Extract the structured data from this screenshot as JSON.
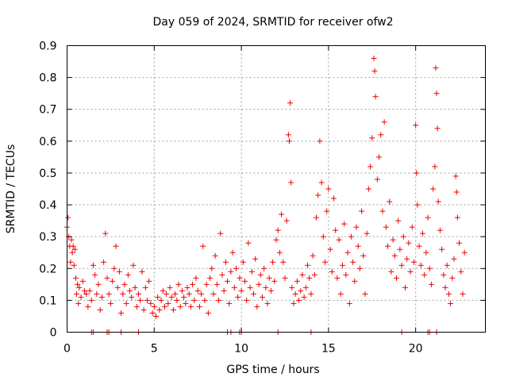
{
  "chart_data": {
    "type": "scatter",
    "title": "Day 059 of 2024, SRMTID for receiver ofw2",
    "xlabel": "GPS time / hours",
    "ylabel": "SRMTID / TECUs",
    "xlim": [
      0,
      24
    ],
    "ylim": [
      0,
      0.9
    ],
    "xticks": [
      0,
      5,
      10,
      15,
      20
    ],
    "yticks": [
      0,
      0.1,
      0.2,
      0.3,
      0.4,
      0.5,
      0.6,
      0.7,
      0.8,
      0.9
    ],
    "xtick_labels": [
      "0",
      "5",
      "10",
      "15",
      "20"
    ],
    "ytick_labels": [
      "0",
      "0.1",
      "0.2",
      "0.3",
      "0.4",
      "0.5",
      "0.6",
      "0.7",
      "0.8",
      "0.9"
    ],
    "grid": true,
    "marker": "plus",
    "color": "#ee0000",
    "series": [
      {
        "name": "SRMTID",
        "points": [
          [
            0.0,
            0.33
          ],
          [
            0.05,
            0.36
          ],
          [
            0.1,
            0.3
          ],
          [
            0.15,
            0.27
          ],
          [
            0.2,
            0.22
          ],
          [
            0.25,
            0.29
          ],
          [
            0.3,
            0.25
          ],
          [
            0.35,
            0.27
          ],
          [
            0.4,
            0.21
          ],
          [
            0.45,
            0.26
          ],
          [
            0.5,
            0.17
          ],
          [
            0.55,
            0.12
          ],
          [
            0.6,
            0.15
          ],
          [
            0.65,
            0.09
          ],
          [
            0.7,
            0.14
          ],
          [
            0.8,
            0.11
          ],
          [
            0.9,
            0.16
          ],
          [
            1.0,
            0.13
          ],
          [
            1.1,
            0.12
          ],
          [
            1.2,
            0.08
          ],
          [
            1.3,
            0.13
          ],
          [
            1.4,
            0.1
          ],
          [
            1.5,
            0.21
          ],
          [
            1.6,
            0.18
          ],
          [
            1.7,
            0.12
          ],
          [
            1.8,
            0.15
          ],
          [
            1.9,
            0.07
          ],
          [
            2.0,
            0.11
          ],
          [
            2.1,
            0.22
          ],
          [
            2.2,
            0.31
          ],
          [
            2.3,
            0.17
          ],
          [
            2.4,
            0.12
          ],
          [
            2.5,
            0.09
          ],
          [
            2.6,
            0.16
          ],
          [
            2.7,
            0.2
          ],
          [
            2.8,
            0.27
          ],
          [
            2.9,
            0.14
          ],
          [
            3.0,
            0.19
          ],
          [
            3.1,
            0.06
          ],
          [
            3.2,
            0.12
          ],
          [
            3.3,
            0.15
          ],
          [
            3.4,
            0.09
          ],
          [
            3.5,
            0.18
          ],
          [
            3.6,
            0.13
          ],
          [
            3.7,
            0.11
          ],
          [
            3.8,
            0.21
          ],
          [
            3.9,
            0.14
          ],
          [
            4.0,
            0.08
          ],
          [
            4.1,
            0.12
          ],
          [
            4.2,
            0.1
          ],
          [
            4.3,
            0.19
          ],
          [
            4.4,
            0.07
          ],
          [
            4.5,
            0.14
          ],
          [
            4.6,
            0.1
          ],
          [
            4.7,
            0.16
          ],
          [
            4.8,
            0.09
          ],
          [
            4.9,
            0.06
          ],
          [
            5.0,
            0.08
          ],
          [
            5.1,
            0.05
          ],
          [
            5.2,
            0.11
          ],
          [
            5.3,
            0.07
          ],
          [
            5.4,
            0.1
          ],
          [
            5.5,
            0.13
          ],
          [
            5.6,
            0.08
          ],
          [
            5.7,
            0.12
          ],
          [
            5.8,
            0.09
          ],
          [
            5.9,
            0.14
          ],
          [
            6.0,
            0.11
          ],
          [
            6.1,
            0.07
          ],
          [
            6.2,
            0.12
          ],
          [
            6.3,
            0.1
          ],
          [
            6.4,
            0.15
          ],
          [
            6.5,
            0.08
          ],
          [
            6.6,
            0.13
          ],
          [
            6.7,
            0.11
          ],
          [
            6.8,
            0.09
          ],
          [
            6.9,
            0.14
          ],
          [
            7.0,
            0.12
          ],
          [
            7.1,
            0.08
          ],
          [
            7.2,
            0.15
          ],
          [
            7.3,
            0.1
          ],
          [
            7.4,
            0.17
          ],
          [
            7.5,
            0.13
          ],
          [
            7.6,
            0.08
          ],
          [
            7.7,
            0.12
          ],
          [
            7.8,
            0.27
          ],
          [
            7.9,
            0.1
          ],
          [
            8.0,
            0.15
          ],
          [
            8.1,
            0.06
          ],
          [
            8.2,
            0.17
          ],
          [
            8.3,
            0.2
          ],
          [
            8.4,
            0.12
          ],
          [
            8.5,
            0.24
          ],
          [
            8.6,
            0.15
          ],
          [
            8.7,
            0.1
          ],
          [
            8.8,
            0.31
          ],
          [
            8.9,
            0.18
          ],
          [
            9.0,
            0.13
          ],
          [
            9.1,
            0.22
          ],
          [
            9.2,
            0.16
          ],
          [
            9.3,
            0.09
          ],
          [
            9.4,
            0.19
          ],
          [
            9.5,
            0.25
          ],
          [
            9.6,
            0.14
          ],
          [
            9.7,
            0.2
          ],
          [
            9.8,
            0.11
          ],
          [
            9.9,
            0.17
          ],
          [
            10.0,
            0.13
          ],
          [
            10.1,
            0.22
          ],
          [
            10.2,
            0.16
          ],
          [
            10.3,
            0.1
          ],
          [
            10.4,
            0.28
          ],
          [
            10.5,
            0.14
          ],
          [
            10.6,
            0.19
          ],
          [
            10.7,
            0.12
          ],
          [
            10.8,
            0.23
          ],
          [
            10.9,
            0.08
          ],
          [
            11.0,
            0.15
          ],
          [
            11.1,
            0.18
          ],
          [
            11.2,
            0.11
          ],
          [
            11.3,
            0.2
          ],
          [
            11.4,
            0.14
          ],
          [
            11.5,
            0.09
          ],
          [
            11.6,
            0.17
          ],
          [
            11.7,
            0.13
          ],
          [
            11.8,
            0.22
          ],
          [
            11.9,
            0.16
          ],
          [
            12.0,
            0.29
          ],
          [
            12.1,
            0.32
          ],
          [
            12.2,
            0.25
          ],
          [
            12.3,
            0.37
          ],
          [
            12.4,
            0.22
          ],
          [
            12.5,
            0.17
          ],
          [
            12.6,
            0.35
          ],
          [
            12.7,
            0.62
          ],
          [
            12.75,
            0.6
          ],
          [
            12.8,
            0.72
          ],
          [
            12.85,
            0.47
          ],
          [
            12.9,
            0.14
          ],
          [
            13.0,
            0.09
          ],
          [
            13.1,
            0.12
          ],
          [
            13.2,
            0.16
          ],
          [
            13.3,
            0.1
          ],
          [
            13.4,
            0.13
          ],
          [
            13.5,
            0.18
          ],
          [
            13.6,
            0.11
          ],
          [
            13.7,
            0.14
          ],
          [
            13.8,
            0.21
          ],
          [
            13.9,
            0.17
          ],
          [
            14.0,
            0.12
          ],
          [
            14.1,
            0.24
          ],
          [
            14.2,
            0.18
          ],
          [
            14.3,
            0.36
          ],
          [
            14.4,
            0.43
          ],
          [
            14.5,
            0.6
          ],
          [
            14.6,
            0.47
          ],
          [
            14.7,
            0.3
          ],
          [
            14.8,
            0.22
          ],
          [
            14.9,
            0.38
          ],
          [
            15.0,
            0.45
          ],
          [
            15.1,
            0.26
          ],
          [
            15.2,
            0.19
          ],
          [
            15.3,
            0.42
          ],
          [
            15.4,
            0.32
          ],
          [
            15.5,
            0.17
          ],
          [
            15.6,
            0.29
          ],
          [
            15.7,
            0.12
          ],
          [
            15.8,
            0.21
          ],
          [
            15.9,
            0.34
          ],
          [
            16.0,
            0.18
          ],
          [
            16.1,
            0.25
          ],
          [
            16.2,
            0.09
          ],
          [
            16.3,
            0.3
          ],
          [
            16.4,
            0.22
          ],
          [
            16.5,
            0.16
          ],
          [
            16.6,
            0.33
          ],
          [
            16.7,
            0.27
          ],
          [
            16.8,
            0.2
          ],
          [
            16.9,
            0.38
          ],
          [
            17.0,
            0.24
          ],
          [
            17.1,
            0.12
          ],
          [
            17.2,
            0.31
          ],
          [
            17.3,
            0.45
          ],
          [
            17.4,
            0.52
          ],
          [
            17.5,
            0.61
          ],
          [
            17.6,
            0.86
          ],
          [
            17.65,
            0.82
          ],
          [
            17.7,
            0.74
          ],
          [
            17.8,
            0.48
          ],
          [
            17.9,
            0.55
          ],
          [
            18.0,
            0.62
          ],
          [
            18.1,
            0.38
          ],
          [
            18.2,
            0.66
          ],
          [
            18.3,
            0.33
          ],
          [
            18.4,
            0.27
          ],
          [
            18.5,
            0.41
          ],
          [
            18.6,
            0.19
          ],
          [
            18.7,
            0.29
          ],
          [
            18.8,
            0.24
          ],
          [
            18.9,
            0.17
          ],
          [
            19.0,
            0.35
          ],
          [
            19.1,
            0.26
          ],
          [
            19.2,
            0.21
          ],
          [
            19.3,
            0.3
          ],
          [
            19.4,
            0.14
          ],
          [
            19.5,
            0.23
          ],
          [
            19.6,
            0.28
          ],
          [
            19.7,
            0.19
          ],
          [
            19.8,
            0.33
          ],
          [
            19.9,
            0.22
          ],
          [
            20.0,
            0.65
          ],
          [
            20.05,
            0.5
          ],
          [
            20.1,
            0.4
          ],
          [
            20.2,
            0.27
          ],
          [
            20.3,
            0.21
          ],
          [
            20.4,
            0.31
          ],
          [
            20.5,
            0.18
          ],
          [
            20.6,
            0.25
          ],
          [
            20.7,
            0.36
          ],
          [
            20.8,
            0.2
          ],
          [
            20.9,
            0.15
          ],
          [
            21.0,
            0.45
          ],
          [
            21.1,
            0.52
          ],
          [
            21.15,
            0.83
          ],
          [
            21.2,
            0.75
          ],
          [
            21.25,
            0.64
          ],
          [
            21.3,
            0.41
          ],
          [
            21.4,
            0.32
          ],
          [
            21.5,
            0.26
          ],
          [
            21.6,
            0.18
          ],
          [
            21.7,
            0.14
          ],
          [
            21.8,
            0.21
          ],
          [
            21.9,
            0.12
          ],
          [
            22.0,
            0.09
          ],
          [
            22.1,
            0.17
          ],
          [
            22.2,
            0.23
          ],
          [
            22.3,
            0.49
          ],
          [
            22.35,
            0.44
          ],
          [
            22.4,
            0.36
          ],
          [
            22.5,
            0.28
          ],
          [
            22.6,
            0.19
          ],
          [
            22.7,
            0.12
          ],
          [
            22.8,
            0.25
          ],
          [
            1.4,
            0.0
          ],
          [
            1.5,
            0.0
          ],
          [
            2.3,
            0.0
          ],
          [
            2.4,
            0.0
          ],
          [
            3.1,
            0.0
          ],
          [
            4.1,
            0.0
          ],
          [
            9.2,
            0.0
          ],
          [
            9.4,
            0.0
          ],
          [
            9.9,
            0.0
          ],
          [
            10.0,
            0.0
          ],
          [
            12.1,
            0.0
          ],
          [
            14.0,
            0.0
          ],
          [
            19.2,
            0.0
          ],
          [
            20.7,
            0.0
          ],
          [
            20.8,
            0.0
          ],
          [
            21.2,
            0.0
          ]
        ]
      }
    ]
  }
}
